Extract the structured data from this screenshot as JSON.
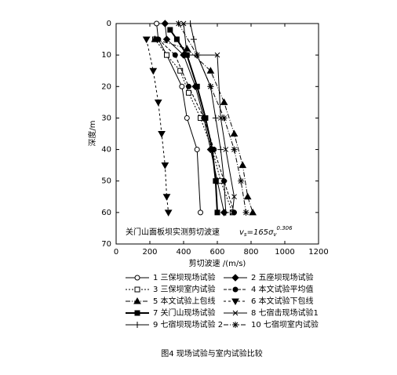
{
  "chart_data": {
    "type": "line",
    "caption": "图4  现场试验与室内试验比较",
    "annotation": "关门山面板坝实测剪切波速",
    "formula": {
      "v": "v",
      "sub": "s",
      "eq": "=165σ",
      "sub2": "v",
      "sup": "0.306"
    },
    "xlabel": "剪切波速 /(m/s)",
    "ylabel": "深度/m",
    "xlim": [
      0,
      1200
    ],
    "xticks": [
      0,
      200,
      400,
      600,
      800,
      1000,
      1200
    ],
    "ylim": [
      70,
      0
    ],
    "yticks": [
      0,
      10,
      20,
      30,
      40,
      50,
      60,
      70
    ],
    "series": [
      {
        "name": "1 三保坝现场试验",
        "color": "#000",
        "marker": "circle-open",
        "dash": "",
        "x": [
          240,
          250,
          300,
          390,
          420,
          480,
          500
        ],
        "values": [
          0,
          5,
          10,
          20,
          30,
          40,
          60
        ]
      },
      {
        "name": "2 五座坝现场试验",
        "color": "#000",
        "marker": "diamond",
        "dash": "",
        "x": [
          290,
          300,
          400,
          470,
          520,
          560,
          600,
          640
        ],
        "values": [
          0,
          5,
          10,
          20,
          30,
          40,
          50,
          60
        ]
      },
      {
        "name": "3 三保坝室内试验",
        "color": "#000",
        "marker": "square-open",
        "dash": "2,2",
        "x": [
          230,
          300,
          380,
          430,
          500,
          570,
          620,
          690
        ],
        "values": [
          5,
          10,
          15,
          22,
          30,
          40,
          50,
          60
        ]
      },
      {
        "name": "4 本文试验平均值",
        "color": "#000",
        "marker": "circle",
        "dash": "4,2",
        "x": [
          250,
          350,
          430,
          520,
          580,
          640,
          700
        ],
        "values": [
          5,
          10,
          20,
          30,
          40,
          50,
          60
        ]
      },
      {
        "name": "5 本文试验上包线",
        "color": "#000",
        "marker": "triangle",
        "dash": "6,2,1,2",
        "x": [
          230,
          420,
          560,
          640,
          700,
          750,
          780,
          810
        ],
        "values": [
          5,
          8,
          15,
          25,
          35,
          45,
          55,
          60
        ]
      },
      {
        "name": "6 本文试验下包线",
        "color": "#000",
        "marker": "triangle-down",
        "dash": "3,3",
        "x": [
          180,
          220,
          250,
          270,
          290,
          300,
          310
        ],
        "values": [
          5,
          15,
          25,
          35,
          45,
          55,
          60
        ]
      },
      {
        "name": "7 关门山现场试验",
        "color": "#000",
        "marker": "square",
        "dash": "",
        "x": [
          320,
          360,
          420,
          480,
          530,
          570,
          590,
          600
        ],
        "values": [
          2,
          5,
          10,
          20,
          30,
          40,
          50,
          60
        ]
      },
      {
        "name": "8 七宿击现场试验1",
        "color": "#000",
        "marker": "x",
        "dash": "",
        "x": [
          400,
          420,
          600,
          620,
          650,
          700,
          690
        ],
        "values": [
          0,
          10,
          10,
          30,
          40,
          55,
          60
        ]
      },
      {
        "name": "9 七宿坝现场试验 2",
        "color": "#000",
        "marker": "plus",
        "dash": "",
        "x": [
          440,
          460,
          480,
          560,
          590,
          620,
          640,
          650
        ],
        "values": [
          0,
          5,
          10,
          20,
          30,
          40,
          50,
          60
        ]
      },
      {
        "name": "10 七宿坝室内试验",
        "color": "#000",
        "marker": "star",
        "dash": "6,2,1,2",
        "x": [
          370,
          480,
          560,
          640,
          700,
          740,
          770
        ],
        "values": [
          0,
          10,
          20,
          30,
          40,
          50,
          60
        ]
      }
    ]
  }
}
